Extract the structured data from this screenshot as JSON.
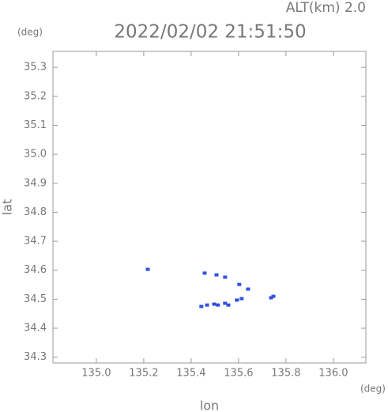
{
  "chart_data": {
    "type": "scatter",
    "title": "2022/02/02 21:51:50",
    "subtitle": "ALT(km) 2.0",
    "x_label": "lon",
    "y_label": "lat",
    "x_unit": "(deg)",
    "y_unit": "(deg)",
    "color": "#3050e0",
    "x": [
      135.217,
      135.457,
      135.507,
      135.543,
      135.603,
      135.64,
      135.737,
      135.747,
      135.593,
      135.613,
      135.443,
      135.467,
      135.497,
      135.513,
      135.543,
      135.557
    ],
    "values": [
      34.603,
      34.59,
      34.584,
      34.576,
      34.551,
      34.535,
      34.505,
      34.51,
      34.497,
      34.502,
      34.475,
      34.48,
      34.483,
      34.48,
      34.486,
      34.48
    ],
    "xlim": [
      134.817,
      136.137
    ],
    "ylim": [
      34.28,
      35.355
    ],
    "xticks": [
      {
        "value": 135,
        "label": "135.0"
      },
      135.2,
      135.4,
      135.6,
      135.8,
      {
        "value": 136,
        "label": "136.0"
      }
    ],
    "yticks": [
      34.3,
      34.4,
      34.5,
      34.6,
      34.7,
      34.8,
      34.9,
      {
        "value": 35,
        "label": "35.0"
      },
      35.1,
      35.2,
      35.3
    ]
  }
}
